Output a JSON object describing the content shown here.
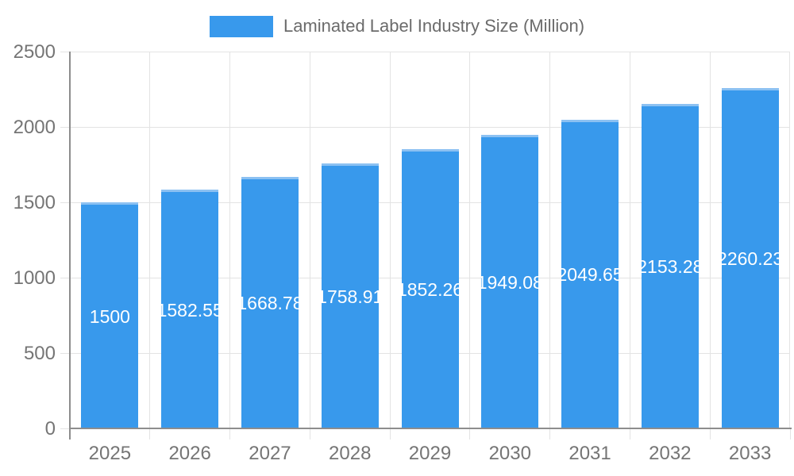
{
  "chart_data": {
    "type": "bar",
    "title": "Laminated Label Industry Size (Million)",
    "legend": "Laminated Label Industry Size (Million)",
    "legend_position": "top",
    "categories": [
      "2025",
      "2026",
      "2027",
      "2028",
      "2029",
      "2030",
      "2031",
      "2032",
      "2033"
    ],
    "values": [
      1500,
      1582.55,
      1668.78,
      1758.91,
      1852.26,
      1949.08,
      2049.65,
      2153.28,
      2260.23
    ],
    "value_labels": [
      "1500",
      "1582.55",
      "1668.78",
      "1758.91",
      "1852.26",
      "1949.08",
      "2049.65",
      "2153.28",
      "2260.23"
    ],
    "xlabel": "",
    "ylabel": "",
    "ylim": [
      0,
      2500
    ],
    "yticks": [
      0,
      500,
      1000,
      1500,
      2000,
      2500
    ],
    "grid": true,
    "colors": {
      "bar": "#3899EC",
      "bar_top_edge": "#8CC1F2",
      "grid": "#e3e3e3",
      "axis": "#8d8d8d",
      "tick_text": "#757575",
      "legend_text": "#6b6b6b",
      "value_label": "#ffffff",
      "background": "#ffffff"
    }
  }
}
